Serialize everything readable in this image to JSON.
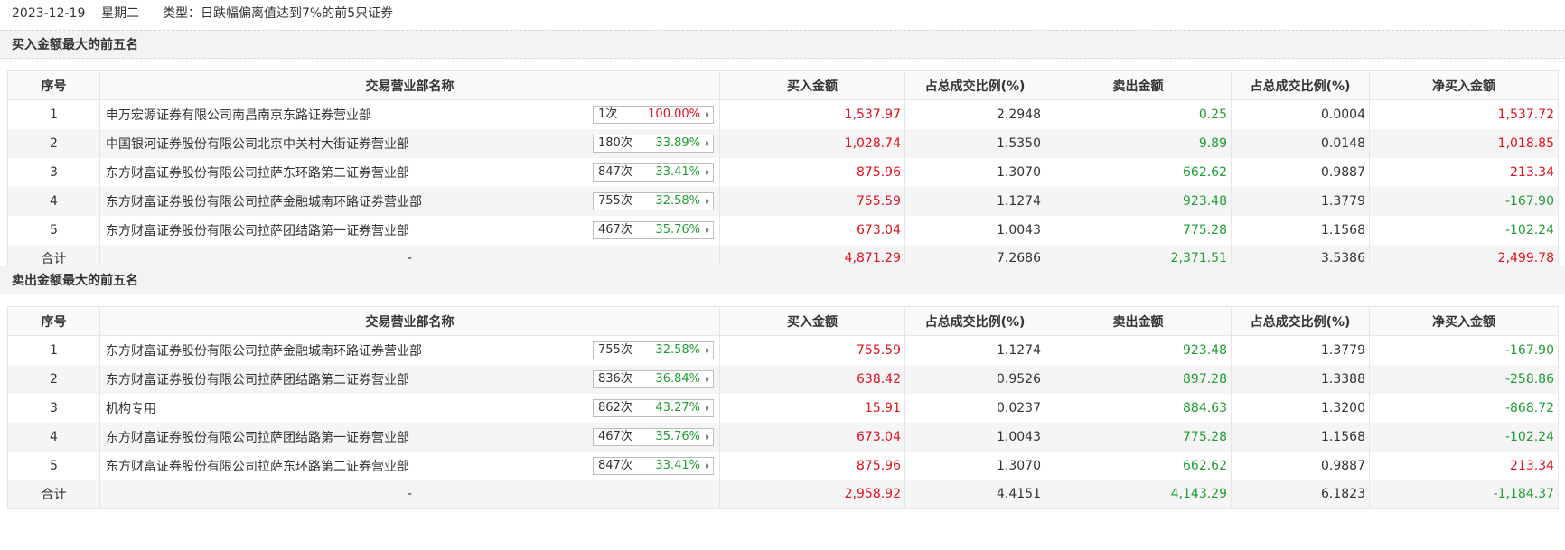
{
  "topbar": {
    "date": "2023-12-19",
    "weekday": "星期二",
    "type_label": "类型：日跌幅偏离值达到7%的前5只证券"
  },
  "colors": {
    "up": "#e4101e",
    "down": "#1e9e32",
    "header_bg": "#fafafa",
    "stripe_bg": "#f5f5f5"
  },
  "columns": [
    "序号",
    "交易营业部名称",
    "买入金额",
    "占总成交比例(%)",
    "卖出金额",
    "占总成交比例(%)",
    "净买入金额"
  ],
  "buy_section": {
    "title": "买入金额最大的前五名",
    "rows": [
      {
        "idx": "1",
        "name": "申万宏源证券有限公司南昌南京东路证券营业部",
        "count": "1次",
        "pct": "100.00%",
        "pct_color": "red",
        "buy": "1,537.97",
        "buy_ratio": "2.2948",
        "sell": "0.25",
        "sell_ratio": "0.0004",
        "net": "1,537.72",
        "net_color": "red"
      },
      {
        "idx": "2",
        "name": "中国银河证券股份有限公司北京中关村大街证券营业部",
        "count": "180次",
        "pct": "33.89%",
        "pct_color": "green",
        "buy": "1,028.74",
        "buy_ratio": "1.5350",
        "sell": "9.89",
        "sell_ratio": "0.0148",
        "net": "1,018.85",
        "net_color": "red"
      },
      {
        "idx": "3",
        "name": "东方财富证券股份有限公司拉萨东环路第二证券营业部",
        "count": "847次",
        "pct": "33.41%",
        "pct_color": "green",
        "buy": "875.96",
        "buy_ratio": "1.3070",
        "sell": "662.62",
        "sell_ratio": "0.9887",
        "net": "213.34",
        "net_color": "red"
      },
      {
        "idx": "4",
        "name": "东方财富证券股份有限公司拉萨金融城南环路证券营业部",
        "count": "755次",
        "pct": "32.58%",
        "pct_color": "green",
        "buy": "755.59",
        "buy_ratio": "1.1274",
        "sell": "923.48",
        "sell_ratio": "1.3779",
        "net": "-167.90",
        "net_color": "green"
      },
      {
        "idx": "5",
        "name": "东方财富证券股份有限公司拉萨团结路第一证券营业部",
        "count": "467次",
        "pct": "35.76%",
        "pct_color": "green",
        "buy": "673.04",
        "buy_ratio": "1.0043",
        "sell": "775.28",
        "sell_ratio": "1.1568",
        "net": "-102.24",
        "net_color": "green"
      }
    ],
    "total": {
      "label": "合计",
      "name": "-",
      "buy": "4,871.29",
      "buy_ratio": "7.2686",
      "sell": "2,371.51",
      "sell_ratio": "3.5386",
      "net": "2,499.78",
      "net_color": "red"
    }
  },
  "sell_section": {
    "title": "卖出金额最大的前五名",
    "rows": [
      {
        "idx": "1",
        "name": "东方财富证券股份有限公司拉萨金融城南环路证券营业部",
        "count": "755次",
        "pct": "32.58%",
        "pct_color": "green",
        "buy": "755.59",
        "buy_ratio": "1.1274",
        "sell": "923.48",
        "sell_ratio": "1.3779",
        "net": "-167.90",
        "net_color": "green"
      },
      {
        "idx": "2",
        "name": "东方财富证券股份有限公司拉萨团结路第二证券营业部",
        "count": "836次",
        "pct": "36.84%",
        "pct_color": "green",
        "buy": "638.42",
        "buy_ratio": "0.9526",
        "sell": "897.28",
        "sell_ratio": "1.3388",
        "net": "-258.86",
        "net_color": "green"
      },
      {
        "idx": "3",
        "name": "机构专用",
        "count": "862次",
        "pct": "43.27%",
        "pct_color": "green",
        "buy": "15.91",
        "buy_ratio": "0.0237",
        "sell": "884.63",
        "sell_ratio": "1.3200",
        "net": "-868.72",
        "net_color": "green"
      },
      {
        "idx": "4",
        "name": "东方财富证券股份有限公司拉萨团结路第一证券营业部",
        "count": "467次",
        "pct": "35.76%",
        "pct_color": "green",
        "buy": "673.04",
        "buy_ratio": "1.0043",
        "sell": "775.28",
        "sell_ratio": "1.1568",
        "net": "-102.24",
        "net_color": "green"
      },
      {
        "idx": "5",
        "name": "东方财富证券股份有限公司拉萨东环路第二证券营业部",
        "count": "847次",
        "pct": "33.41%",
        "pct_color": "green",
        "buy": "875.96",
        "buy_ratio": "1.3070",
        "sell": "662.62",
        "sell_ratio": "0.9887",
        "net": "213.34",
        "net_color": "red"
      }
    ],
    "total": {
      "label": "合计",
      "name": "-",
      "buy": "2,958.92",
      "buy_ratio": "4.4151",
      "sell": "4,143.29",
      "sell_ratio": "6.1823",
      "net": "-1,184.37",
      "net_color": "green"
    }
  }
}
